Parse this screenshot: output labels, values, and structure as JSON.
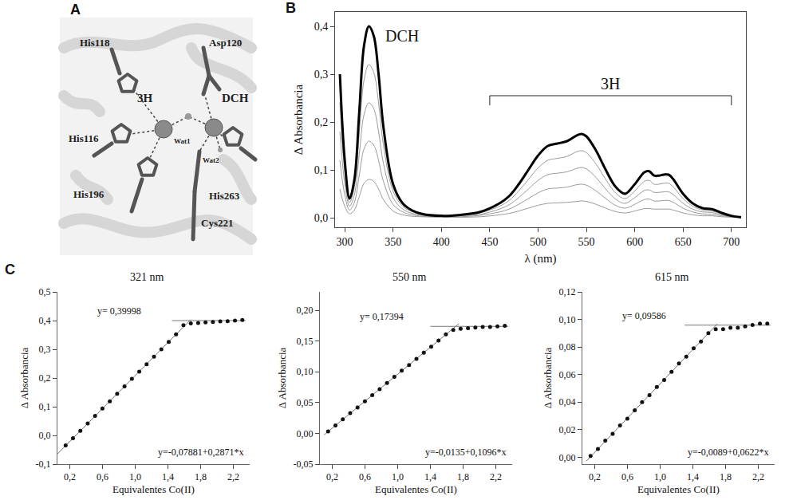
{
  "panel_letters": [
    "A",
    "B",
    "C"
  ],
  "diagram": {
    "labels": [
      "His118",
      "3H",
      "Asp120",
      "DCH",
      "Wat1",
      "Wat2",
      "His116",
      "His263",
      "His196",
      "Cys221"
    ]
  },
  "chart_data": [
    {
      "type": "line",
      "x_title": "λ (nm)",
      "y_title": "Δ Absorbancia",
      "x": [
        295,
        300,
        305,
        310,
        315,
        320,
        325,
        330,
        335,
        340,
        350,
        360,
        370,
        380,
        400,
        420,
        440,
        460,
        470,
        480,
        490,
        500,
        510,
        520,
        530,
        540,
        545,
        550,
        560,
        570,
        580,
        590,
        600,
        610,
        615,
        620,
        625,
        630,
        635,
        640,
        650,
        660,
        670,
        680,
        690,
        700,
        710
      ],
      "series": [
        {
          "color": "#9a9a9a",
          "line_style": "thin",
          "values": [
            0.06,
            0.024,
            0.008,
            0.016,
            0.044,
            0.072,
            0.08,
            0.076,
            0.06,
            0.038,
            0.014,
            0.006,
            0.003,
            0.002,
            0.001,
            0.001,
            0.002,
            0.006,
            0.009,
            0.014,
            0.02,
            0.026,
            0.03,
            0.031,
            0.032,
            0.034,
            0.035,
            0.034,
            0.028,
            0.02,
            0.013,
            0.01,
            0.014,
            0.019,
            0.019,
            0.018,
            0.018,
            0.018,
            0.018,
            0.016,
            0.01,
            0.006,
            0.004,
            0.004,
            0.002,
            0.001,
            0
          ]
        },
        {
          "color": "#9a9a9a",
          "line_style": "thin",
          "values": [
            0.12,
            0.048,
            0.016,
            0.032,
            0.088,
            0.144,
            0.16,
            0.152,
            0.12,
            0.076,
            0.028,
            0.012,
            0.006,
            0.003,
            0.002,
            0.002,
            0.005,
            0.012,
            0.018,
            0.028,
            0.04,
            0.052,
            0.06,
            0.062,
            0.064,
            0.069,
            0.07,
            0.068,
            0.056,
            0.04,
            0.026,
            0.02,
            0.028,
            0.038,
            0.039,
            0.035,
            0.035,
            0.036,
            0.036,
            0.032,
            0.02,
            0.012,
            0.008,
            0.007,
            0.004,
            0.002,
            0
          ]
        },
        {
          "color": "#9a9a9a",
          "line_style": "thin",
          "values": [
            0.18,
            0.072,
            0.024,
            0.048,
            0.132,
            0.216,
            0.24,
            0.228,
            0.18,
            0.114,
            0.042,
            0.018,
            0.009,
            0.005,
            0.002,
            0.004,
            0.007,
            0.018,
            0.027,
            0.042,
            0.06,
            0.078,
            0.09,
            0.093,
            0.096,
            0.103,
            0.105,
            0.102,
            0.084,
            0.06,
            0.039,
            0.03,
            0.042,
            0.057,
            0.058,
            0.053,
            0.053,
            0.054,
            0.054,
            0.048,
            0.03,
            0.018,
            0.012,
            0.011,
            0.006,
            0.002,
            0.001
          ]
        },
        {
          "color": "#9a9a9a",
          "line_style": "thin",
          "values": [
            0.24,
            0.096,
            0.032,
            0.064,
            0.176,
            0.288,
            0.32,
            0.304,
            0.24,
            0.152,
            0.056,
            0.024,
            0.012,
            0.006,
            0.003,
            0.005,
            0.01,
            0.024,
            0.036,
            0.056,
            0.08,
            0.104,
            0.12,
            0.124,
            0.128,
            0.138,
            0.14,
            0.136,
            0.112,
            0.08,
            0.052,
            0.04,
            0.056,
            0.076,
            0.078,
            0.07,
            0.07,
            0.072,
            0.072,
            0.064,
            0.04,
            0.024,
            0.016,
            0.014,
            0.008,
            0.003,
            0.001
          ]
        },
        {
          "color": "#000000",
          "line_style": "thick",
          "values": [
            0.3,
            0.12,
            0.04,
            0.08,
            0.22,
            0.36,
            0.4,
            0.38,
            0.3,
            0.19,
            0.07,
            0.03,
            0.015,
            0.008,
            0.004,
            0.006,
            0.012,
            0.03,
            0.045,
            0.07,
            0.1,
            0.13,
            0.15,
            0.155,
            0.16,
            0.172,
            0.175,
            0.17,
            0.14,
            0.1,
            0.065,
            0.05,
            0.07,
            0.095,
            0.097,
            0.088,
            0.088,
            0.09,
            0.09,
            0.08,
            0.05,
            0.03,
            0.02,
            0.018,
            0.01,
            0.004,
            0.001
          ]
        }
      ],
      "xlim": [
        290,
        715
      ],
      "xticks": [
        300,
        350,
        400,
        450,
        500,
        550,
        600,
        650,
        700
      ],
      "ylim": [
        -0.02,
        0.43
      ],
      "yticks": [
        {
          "value": 0,
          "label": "0,0"
        },
        {
          "value": 0.1,
          "label": "0,1"
        },
        {
          "value": 0.2,
          "label": "0,2"
        },
        {
          "value": 0.3,
          "label": "0,3"
        },
        {
          "value": 0.4,
          "label": "0,4"
        }
      ],
      "grid": false,
      "annotations": [
        {
          "text": "DCH",
          "x": 340,
          "y": 0.38
        },
        {
          "text": "3H",
          "x": 575,
          "y": 0.255,
          "span": [
            450,
            700
          ]
        }
      ]
    },
    {
      "type": "scatter",
      "title": "321 nm",
      "x_title": "Equivalentes Co(II)",
      "y_title": "Δ Absorbancia",
      "marker": "circle",
      "color": "#111111",
      "x": [
        0.15,
        0.24,
        0.33,
        0.42,
        0.51,
        0.6,
        0.69,
        0.78,
        0.87,
        0.96,
        1.05,
        1.14,
        1.23,
        1.32,
        1.41,
        1.5,
        1.59,
        1.68,
        1.77,
        1.86,
        1.95,
        2.04,
        2.13,
        2.22,
        2.31
      ],
      "values": [
        -0.035,
        -0.01,
        0.016,
        0.042,
        0.068,
        0.094,
        0.119,
        0.145,
        0.171,
        0.197,
        0.222,
        0.248,
        0.274,
        0.3,
        0.326,
        0.352,
        0.384,
        0.39,
        0.392,
        0.394,
        0.395,
        0.397,
        0.398,
        0.4,
        0.402
      ],
      "fits": [
        {
          "label": "y=-0,07881+0,2871*x",
          "intercept": -0.07881,
          "slope": 0.2871,
          "x_range": [
            0.05,
            1.68
          ]
        },
        {
          "label": "y= 0,39998",
          "intercept": 0.39998,
          "slope": 0,
          "x_range": [
            1.45,
            2.35
          ]
        }
      ],
      "xlim": [
        0.05,
        2.4
      ],
      "xticks": [
        {
          "value": 0.2,
          "label": "0,2"
        },
        {
          "value": 0.6,
          "label": "0,6"
        },
        {
          "value": 1.0,
          "label": "1,0"
        },
        {
          "value": 1.4,
          "label": "1,4"
        },
        {
          "value": 1.8,
          "label": "1,8"
        },
        {
          "value": 2.2,
          "label": "2,2"
        }
      ],
      "ylim": [
        -0.1,
        0.5
      ],
      "yticks": [
        {
          "value": -0.1,
          "label": "-0,1"
        },
        {
          "value": 0,
          "label": "0,0"
        },
        {
          "value": 0.1,
          "label": "0,1"
        },
        {
          "value": 0.2,
          "label": "0,2"
        },
        {
          "value": 0.3,
          "label": "0,3"
        },
        {
          "value": 0.4,
          "label": "0,4"
        },
        {
          "value": 0.5,
          "label": "0,5"
        }
      ],
      "grid": false
    },
    {
      "type": "scatter",
      "title": "550 nm",
      "x_title": "Equivalentes Co(II)",
      "y_title": "Δ Absorbancia",
      "marker": "circle",
      "color": "#111111",
      "x": [
        0.15,
        0.24,
        0.33,
        0.42,
        0.51,
        0.6,
        0.69,
        0.78,
        0.87,
        0.96,
        1.05,
        1.14,
        1.23,
        1.32,
        1.41,
        1.5,
        1.59,
        1.68,
        1.77,
        1.86,
        1.95,
        2.04,
        2.13,
        2.22,
        2.31
      ],
      "values": [
        0.003,
        0.013,
        0.023,
        0.033,
        0.042,
        0.052,
        0.062,
        0.072,
        0.082,
        0.092,
        0.102,
        0.111,
        0.121,
        0.131,
        0.141,
        0.151,
        0.161,
        0.168,
        0.17,
        0.171,
        0.172,
        0.173,
        0.173,
        0.174,
        0.175
      ],
      "fits": [
        {
          "label": "y=-0,0135+0,1096*x",
          "intercept": -0.0135,
          "slope": 0.1096,
          "x_range": [
            0.1,
            1.75
          ]
        },
        {
          "label": "y= 0,17394",
          "intercept": 0.17394,
          "slope": 0,
          "x_range": [
            1.4,
            2.35
          ]
        }
      ],
      "xlim": [
        0.05,
        2.4
      ],
      "xticks": [
        {
          "value": 0.2,
          "label": "0,2"
        },
        {
          "value": 0.6,
          "label": "0,6"
        },
        {
          "value": 1.0,
          "label": "1,0"
        },
        {
          "value": 1.4,
          "label": "1,4"
        },
        {
          "value": 1.8,
          "label": "1,8"
        },
        {
          "value": 2.2,
          "label": "2,2"
        }
      ],
      "ylim": [
        -0.05,
        0.23
      ],
      "yticks": [
        {
          "value": -0.05,
          "label": "-0,05"
        },
        {
          "value": 0,
          "label": "0,00"
        },
        {
          "value": 0.05,
          "label": "0,05"
        },
        {
          "value": 0.1,
          "label": "0,10"
        },
        {
          "value": 0.15,
          "label": "0,15"
        },
        {
          "value": 0.2,
          "label": "0,20"
        }
      ],
      "grid": false
    },
    {
      "type": "scatter",
      "title": "615 nm",
      "x_title": "Equivalentes Co(II)",
      "y_title": "Δ Absorbancia",
      "marker": "circle",
      "color": "#111111",
      "x": [
        0.15,
        0.24,
        0.33,
        0.42,
        0.51,
        0.6,
        0.69,
        0.78,
        0.87,
        0.96,
        1.05,
        1.14,
        1.23,
        1.32,
        1.41,
        1.5,
        1.59,
        1.68,
        1.77,
        1.86,
        1.95,
        2.04,
        2.13,
        2.22,
        2.31
      ],
      "values": [
        0.001,
        0.006,
        0.012,
        0.017,
        0.023,
        0.028,
        0.034,
        0.04,
        0.045,
        0.051,
        0.056,
        0.062,
        0.068,
        0.073,
        0.079,
        0.084,
        0.09,
        0.093,
        0.093,
        0.094,
        0.094,
        0.095,
        0.096,
        0.097,
        0.097
      ],
      "fits": [
        {
          "label": "y=-0,0089+0,0622*x",
          "intercept": -0.0089,
          "slope": 0.0622,
          "x_range": [
            0.1,
            1.7
          ]
        },
        {
          "label": "y= 0,09586",
          "intercept": 0.09586,
          "slope": 0,
          "x_range": [
            1.3,
            2.35
          ]
        }
      ],
      "xlim": [
        0.05,
        2.4
      ],
      "xticks": [
        {
          "value": 0.2,
          "label": "0,2"
        },
        {
          "value": 0.6,
          "label": "0,6"
        },
        {
          "value": 1.0,
          "label": "1,0"
        },
        {
          "value": 1.4,
          "label": "1,4"
        },
        {
          "value": 1.8,
          "label": "1,8"
        },
        {
          "value": 2.2,
          "label": "2,2"
        }
      ],
      "ylim": [
        -0.005,
        0.12
      ],
      "yticks": [
        {
          "value": 0,
          "label": "0,00"
        },
        {
          "value": 0.02,
          "label": "0,02"
        },
        {
          "value": 0.04,
          "label": "0,04"
        },
        {
          "value": 0.06,
          "label": "0,06"
        },
        {
          "value": 0.08,
          "label": "0,08"
        },
        {
          "value": 0.1,
          "label": "0,10"
        },
        {
          "value": 0.12,
          "label": "0,12"
        }
      ],
      "grid": false
    }
  ]
}
